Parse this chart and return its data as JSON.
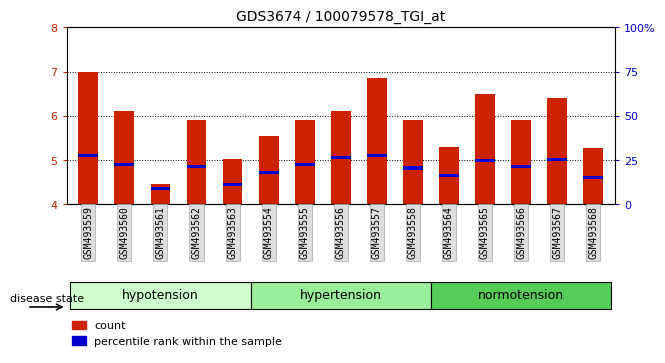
{
  "title": "GDS3674 / 100079578_TGI_at",
  "samples": [
    "GSM493559",
    "GSM493560",
    "GSM493561",
    "GSM493562",
    "GSM493563",
    "GSM493554",
    "GSM493555",
    "GSM493556",
    "GSM493557",
    "GSM493558",
    "GSM493564",
    "GSM493565",
    "GSM493566",
    "GSM493567",
    "GSM493568"
  ],
  "red_values": [
    7.0,
    6.1,
    4.45,
    5.9,
    5.02,
    5.55,
    5.9,
    6.1,
    6.85,
    5.9,
    5.3,
    6.5,
    5.9,
    6.4,
    5.28
  ],
  "blue_values": [
    5.1,
    4.9,
    4.35,
    4.85,
    4.45,
    4.72,
    4.9,
    5.05,
    5.1,
    4.82,
    4.65,
    5.0,
    4.85,
    5.02,
    4.6
  ],
  "ymin": 4.0,
  "ymax": 8.0,
  "yticks": [
    4,
    5,
    6,
    7,
    8
  ],
  "right_yticks": [
    0,
    25,
    50,
    75,
    100
  ],
  "groups": [
    {
      "label": "hypotension",
      "start": 0,
      "end": 4
    },
    {
      "label": "hypertension",
      "start": 5,
      "end": 9
    },
    {
      "label": "normotension",
      "start": 10,
      "end": 14
    }
  ],
  "group_colors": [
    "#ccffcc",
    "#99ee99",
    "#55cc55"
  ],
  "bar_color": "#cc2200",
  "blue_color": "#0000cc",
  "bar_width": 0.55,
  "background_color": "#ffffff",
  "tick_label_color": "#cc2200",
  "right_tick_color": "#0000cc",
  "disease_state_label": "disease state",
  "legend_count": "count",
  "legend_percentile": "percentile rank within the sample"
}
